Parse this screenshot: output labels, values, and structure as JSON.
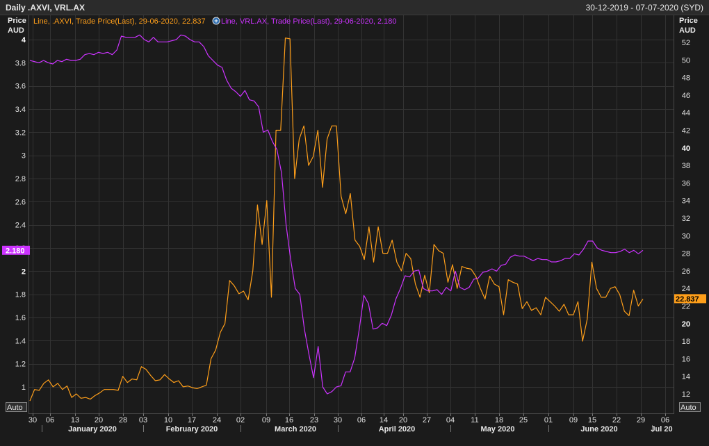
{
  "header": {
    "title": "Daily .AXVI, VRL.AX",
    "date_range": "30-12-2019 - 07-07-2020 (SYD)"
  },
  "left_axis": {
    "title_line1": "Price",
    "title_line2": "AUD"
  },
  "right_axis": {
    "title_line1": "Price",
    "title_line2": "AUD"
  },
  "buttons": {
    "auto_left": "Auto",
    "auto_right": "Auto"
  },
  "colors": {
    "axvi": "#ff9f1a",
    "vrl": "#cc33ff",
    "background": "#1b1b1b",
    "grid": "#333333"
  },
  "chart_data": {
    "type": "line",
    "grid": true,
    "x_labels": [
      "30",
      "06",
      "13",
      "20",
      "28",
      "03",
      "10",
      "17",
      "24",
      "02",
      "09",
      "16",
      "23",
      "30",
      "06",
      "14",
      "20",
      "27",
      "04",
      "11",
      "18",
      "25",
      "01",
      "09",
      "15",
      "22",
      "29",
      "06"
    ],
    "months": [
      "January 2020",
      "February 2020",
      "March 2020",
      "April 2020",
      "May 2020",
      "June 2020",
      "Jul 20"
    ],
    "left_axis": {
      "label": "Price AUD",
      "min": 0.9,
      "max": 4.0,
      "ticks": [
        "1",
        "1.2",
        "1.4",
        "1.6",
        "1.8",
        "2",
        "2.2",
        "2.4",
        "2.6",
        "2.8",
        "3",
        "3.2",
        "3.4",
        "3.6",
        "3.8",
        "4"
      ],
      "bold_ticks": [
        "2",
        "4"
      ]
    },
    "right_axis": {
      "label": "Price AUD",
      "min": 11,
      "max": 52,
      "ticks": [
        "12",
        "14",
        "16",
        "18",
        "20",
        "22",
        "24",
        "26",
        "28",
        "30",
        "32",
        "34",
        "36",
        "38",
        "40",
        "42",
        "44",
        "46",
        "48",
        "50",
        "52"
      ],
      "bold_ticks": [
        "20",
        "40"
      ]
    },
    "series": [
      {
        "name": "Line, .AXVI, Trade Price(Last), 29-06-2020, 22.837",
        "axis": "right",
        "last_value": "22.837",
        "values": [
          11.2,
          12.5,
          12.4,
          13.2,
          13.6,
          12.8,
          13.2,
          12.5,
          12.9,
          11.6,
          12.0,
          11.5,
          11.6,
          11.4,
          11.8,
          12.1,
          12.5,
          12.5,
          12.5,
          12.4,
          14.0,
          13.3,
          13.7,
          13.6,
          15.1,
          14.8,
          14.1,
          13.5,
          13.6,
          14.2,
          13.7,
          13.3,
          13.5,
          12.8,
          12.9,
          12.7,
          12.6,
          12.8,
          13.0,
          16.0,
          17.0,
          19.0,
          20.0,
          24.9,
          24.3,
          23.4,
          23.7,
          22.7,
          26.0,
          33.5,
          29.0,
          34.0,
          23.0,
          42.0,
          42.0,
          52.5,
          52.4,
          36.5,
          41.0,
          42.5,
          38.0,
          39.0,
          42.0,
          35.5,
          41.0,
          42.5,
          42.5,
          34.5,
          32.5,
          34.8,
          29.5,
          28.8,
          27.3,
          31.0,
          27.0,
          31.0,
          28.0,
          28.0,
          29.5,
          27.0,
          26.0,
          28.0,
          27.4,
          24.5,
          23.0,
          25.5,
          23.5,
          29.0,
          28.3,
          28.0,
          24.7,
          26.7,
          24.0,
          26.5,
          26.3,
          26.2,
          25.4,
          24.0,
          22.8,
          25.4,
          24.5,
          24.2,
          21.0,
          25.0,
          24.7,
          24.5,
          21.7,
          22.5,
          21.5,
          21.8,
          21.0,
          23.0,
          22.5,
          22.0,
          21.4,
          22.2,
          21.0,
          21.0,
          22.5,
          18.0,
          20.5,
          27.0,
          24.0,
          23.0,
          23.0,
          24.0,
          24.2,
          23.3,
          21.4,
          20.9,
          23.8,
          22.0,
          22.8
        ]
      },
      {
        "name": "Line, VRL.AX, Trade Price(Last), 29-06-2020, 2.180",
        "axis": "left",
        "last_value": "2.180",
        "values": [
          3.82,
          3.81,
          3.8,
          3.82,
          3.8,
          3.79,
          3.82,
          3.81,
          3.83,
          3.82,
          3.82,
          3.83,
          3.87,
          3.88,
          3.87,
          3.89,
          3.88,
          3.89,
          3.87,
          3.91,
          4.03,
          4.02,
          4.02,
          4.02,
          4.04,
          4.0,
          3.98,
          4.02,
          3.98,
          3.98,
          3.98,
          3.99,
          4.0,
          4.04,
          4.03,
          4.0,
          3.98,
          3.98,
          3.94,
          3.86,
          3.82,
          3.78,
          3.76,
          3.65,
          3.58,
          3.55,
          3.51,
          3.56,
          3.48,
          3.47,
          3.42,
          3.2,
          3.22,
          3.12,
          3.05,
          2.85,
          2.4,
          2.1,
          1.85,
          1.8,
          1.5,
          1.28,
          1.08,
          1.35,
          1.0,
          0.94,
          0.96,
          1.0,
          1.01,
          1.13,
          1.13,
          1.25,
          1.5,
          1.79,
          1.72,
          1.5,
          1.51,
          1.55,
          1.53,
          1.62,
          1.76,
          1.85,
          1.96,
          1.95,
          2.0,
          2.01,
          1.85,
          1.83,
          1.83,
          1.84,
          1.8,
          1.86,
          1.83,
          2.0,
          1.86,
          1.84,
          1.86,
          1.93,
          1.94,
          1.99,
          2.0,
          2.02,
          2.0,
          2.05,
          2.06,
          2.12,
          2.14,
          2.13,
          2.13,
          2.11,
          2.09,
          2.11,
          2.1,
          2.1,
          2.08,
          2.08,
          2.09,
          2.11,
          2.11,
          2.15,
          2.14,
          2.19,
          2.26,
          2.26,
          2.2,
          2.18,
          2.17,
          2.16,
          2.16,
          2.17,
          2.19,
          2.16,
          2.18,
          2.15,
          2.18
        ]
      }
    ]
  }
}
